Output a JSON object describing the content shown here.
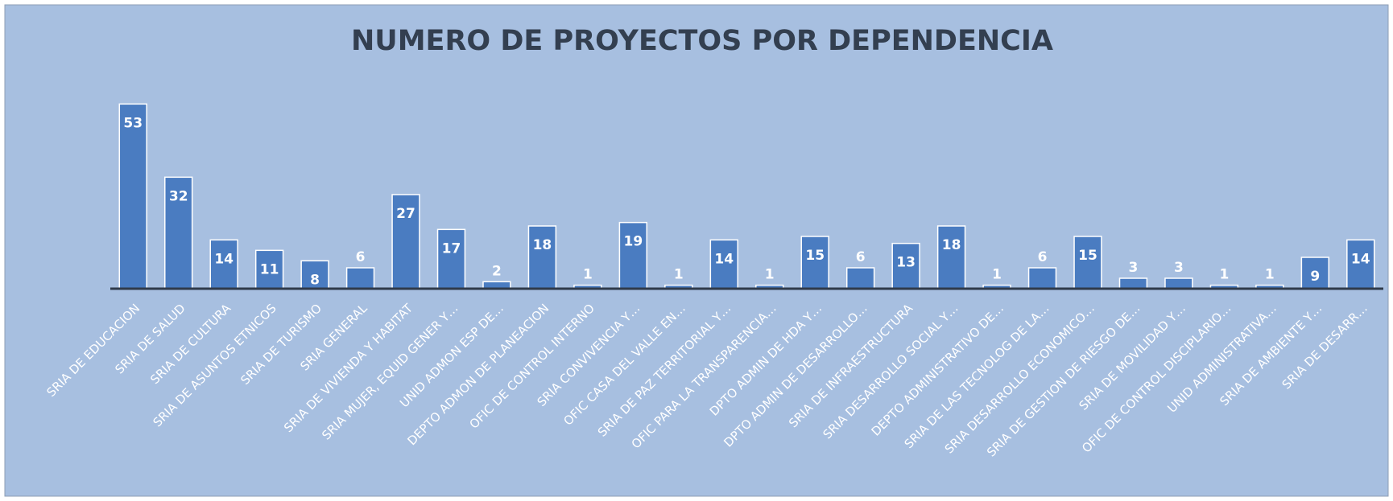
{
  "chart_data": {
    "type": "bar",
    "title": "NUMERO DE PROYECTOS POR DEPENDENCIA",
    "categories": [
      "SRIA DE EDUCACION",
      "SRIA  DE SALUD",
      "SRIA DE CULTURA",
      "SRIA DE ASUNTOS ETNICOS",
      "SRIA DE TURISMO",
      "SRIA GENERAL",
      "SRIA  DE VIVIENDA Y HABITAT",
      "SRIA MUJER, EQUID GENER Y…",
      "UNID ADMON ESP DE…",
      "DEPTO ADMON DE PLANEACION",
      "OFIC DE CONTROL INTERNO",
      "SRIA CONVIVENCIA Y…",
      "OFIC  CASA DEL VALLE EN…",
      "SRIA DE PAZ  TERRITORIAL Y…",
      "OFIC PARA LA TRANSPARENCIA…",
      "DPTO ADMIN DE   HDA Y…",
      "DPTO  ADMIN  DE DESARROLLO…",
      "SRIA  DE INFRAESTRUCTURA",
      "SRIA DESARROLLO SOCIAL Y…",
      "DEPTO ADMINISTRATIVO DE…",
      "SRIA DE LAS TECNOLOG  DE LA…",
      "SRIA DESARROLLO ECONOMICO…",
      "SRIA DE GESTION DE RIESGO DE…",
      "SRIA  DE MOVILIDAD Y…",
      "OFIC DE CONTROL DISCIPLARIO…",
      "UNID ADMINISTRATIVA…",
      "SRIA DE AMBIENTE Y…",
      "SRIA DE DESARR…"
    ],
    "values": [
      53,
      32,
      14,
      11,
      8,
      6,
      27,
      17,
      2,
      18,
      1,
      19,
      1,
      14,
      1,
      15,
      6,
      13,
      18,
      1,
      6,
      15,
      3,
      3,
      1,
      1,
      9,
      14
    ],
    "color": "#4a7cc1",
    "ylim": [
      0,
      60
    ]
  }
}
